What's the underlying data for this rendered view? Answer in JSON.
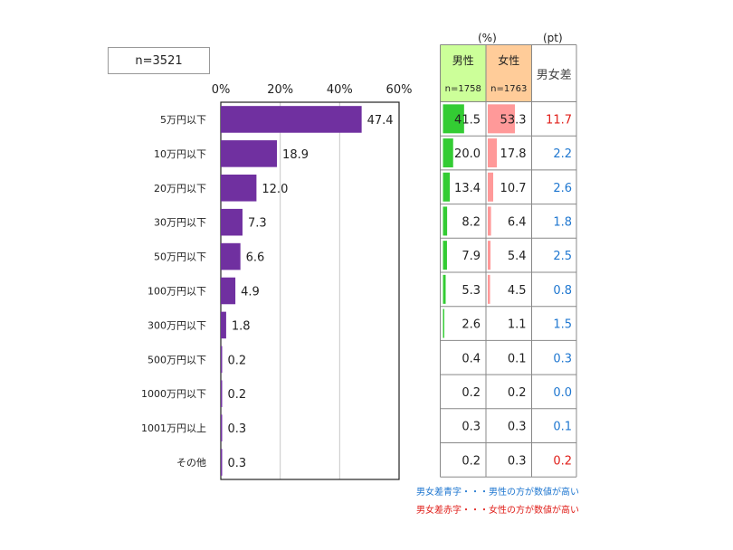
{
  "n_label": "n=3521",
  "colors": {
    "bar": "#7030a0",
    "male": "#33cc33",
    "female": "#ff9999",
    "male_header": "#ccff99",
    "female_header": "#ffcc99",
    "blue": "#1f77d0",
    "red": "#e0201b"
  },
  "table": {
    "unit_pct": "(%)",
    "unit_pt": "(pt)",
    "male_label": "男性",
    "male_n": "n=1758",
    "female_label": "女性",
    "female_n": "n=1763",
    "diff_label": "男女差",
    "rows": [
      {
        "male": 41.5,
        "female": 53.3,
        "diff": "11.7",
        "diff_color": "red"
      },
      {
        "male": 20.0,
        "female": 17.8,
        "diff": "2.2",
        "diff_color": "blue"
      },
      {
        "male": 13.4,
        "female": 10.7,
        "diff": "2.6",
        "diff_color": "blue"
      },
      {
        "male": 8.2,
        "female": 6.4,
        "diff": "1.8",
        "diff_color": "blue"
      },
      {
        "male": 7.9,
        "female": 5.4,
        "diff": "2.5",
        "diff_color": "blue"
      },
      {
        "male": 5.3,
        "female": 4.5,
        "diff": "0.8",
        "diff_color": "blue"
      },
      {
        "male": 2.6,
        "female": 1.1,
        "diff": "1.5",
        "diff_color": "blue"
      },
      {
        "male": 0.4,
        "female": 0.1,
        "diff": "0.3",
        "diff_color": "blue"
      },
      {
        "male": 0.2,
        "female": 0.2,
        "diff": "0.0",
        "diff_color": "blue"
      },
      {
        "male": 0.3,
        "female": 0.3,
        "diff": "0.1",
        "diff_color": "blue"
      },
      {
        "male": 0.2,
        "female": 0.3,
        "diff": "0.2",
        "diff_color": "red"
      }
    ]
  },
  "legend": {
    "blue_text": "男女差青字・・・男性の方が数値が高い",
    "red_text": "男女差赤字・・・女性の方が数値が高い"
  },
  "chart_data": {
    "type": "bar",
    "orientation": "horizontal",
    "categories": [
      "5万円以下",
      "10万円以下",
      "20万円以下",
      "30万円以下",
      "50万円以下",
      "100万円以下",
      "300万円以下",
      "500万円以下",
      "1000万円以下",
      "1001万円以上",
      "その他"
    ],
    "values": [
      47.4,
      18.9,
      12.0,
      7.3,
      6.6,
      4.9,
      1.8,
      0.2,
      0.2,
      0.3,
      0.3
    ],
    "value_labels": [
      "47.4",
      "18.9",
      "12.0",
      "7.3",
      "6.6",
      "4.9",
      "1.8",
      "0.2",
      "0.2",
      "0.3",
      "0.3"
    ],
    "xlim": [
      0,
      60
    ],
    "xticks": [
      0,
      20,
      40,
      60
    ],
    "xtick_labels": [
      "0%",
      "20%",
      "40%",
      "60%"
    ],
    "grid": true,
    "title": "",
    "xlabel": "",
    "ylabel": ""
  }
}
